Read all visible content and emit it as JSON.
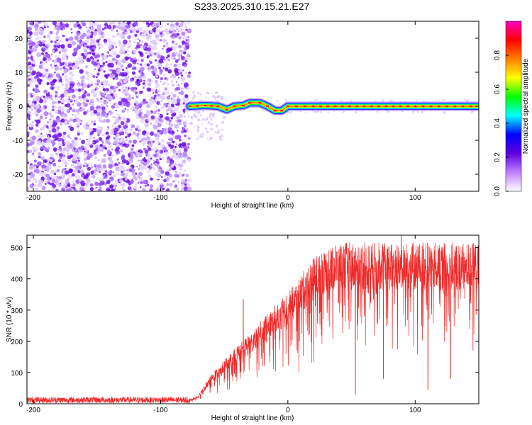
{
  "title": "S233.2025.310.15.21.E27",
  "chart_data": [
    {
      "type": "heatmap",
      "xlabel": "Height of straight line (km)",
      "ylabel": "Frequency (Hz)",
      "xlim": [
        -205,
        150
      ],
      "ylim": [
        -25,
        25
      ],
      "xticks": [
        -200,
        -100,
        0,
        100
      ],
      "yticks": [
        -20,
        -10,
        0,
        10,
        20
      ],
      "xtick_labels": [
        "-200",
        "-100",
        "0",
        "100"
      ],
      "ytick_labels": [
        "-20",
        "-10",
        "0",
        "10",
        "20"
      ],
      "noise_region_x": [
        -205,
        -77
      ],
      "signal_onset_x": -77,
      "ridge_points": [
        {
          "x": -77,
          "y": 0.0
        },
        {
          "x": -65,
          "y": 0.2
        },
        {
          "x": -55,
          "y": 0.0
        },
        {
          "x": -48,
          "y": -1.0
        },
        {
          "x": -42,
          "y": 0.0
        },
        {
          "x": -35,
          "y": 0.2
        },
        {
          "x": -30,
          "y": 1.0
        },
        {
          "x": -22,
          "y": 1.0
        },
        {
          "x": -16,
          "y": 0.0
        },
        {
          "x": -10,
          "y": -1.3
        },
        {
          "x": -5,
          "y": -1.3
        },
        {
          "x": 0,
          "y": 0.0
        },
        {
          "x": 20,
          "y": 0.0
        },
        {
          "x": 60,
          "y": 0.0
        },
        {
          "x": 100,
          "y": 0.0
        },
        {
          "x": 150,
          "y": 0.0
        }
      ],
      "colorbar": {
        "label": "Normalized spectral amplitude",
        "range": [
          0.0,
          1.0
        ],
        "ticks": [
          0.0,
          0.2,
          0.4,
          0.6,
          0.8
        ],
        "tick_labels": [
          "0.0",
          "0.2",
          "0.4",
          "0.6",
          "0.8"
        ],
        "colors": [
          "#ffffff",
          "#c080ff",
          "#6000e0",
          "#0000ff",
          "#00ffff",
          "#00ff00",
          "#ffff00",
          "#ff8000",
          "#ff0000",
          "#ff00c0"
        ]
      }
    },
    {
      "type": "line",
      "xlabel": "Height of straight line (km)",
      "ylabel": "SNR (10 * v/v)",
      "xlim": [
        -205,
        150
      ],
      "ylim": [
        0,
        540
      ],
      "xticks": [
        -200,
        -100,
        0,
        100
      ],
      "yticks": [
        0,
        100,
        200,
        300,
        400,
        500
      ],
      "xtick_labels": [
        "-200",
        "-100",
        "0",
        "100"
      ],
      "ytick_labels": [
        "0",
        "100",
        "200",
        "300",
        "400",
        "500"
      ],
      "color": "#ee2a2a",
      "trend": [
        {
          "x": -205,
          "y": 12
        },
        {
          "x": -77,
          "y": 12
        },
        {
          "x": -70,
          "y": 25
        },
        {
          "x": -60,
          "y": 80
        },
        {
          "x": -50,
          "y": 120
        },
        {
          "x": -40,
          "y": 160
        },
        {
          "x": -30,
          "y": 190
        },
        {
          "x": -20,
          "y": 230
        },
        {
          "x": -10,
          "y": 270
        },
        {
          "x": 0,
          "y": 305
        },
        {
          "x": 10,
          "y": 350
        },
        {
          "x": 20,
          "y": 400
        },
        {
          "x": 30,
          "y": 430
        },
        {
          "x": 40,
          "y": 440
        },
        {
          "x": 60,
          "y": 440
        },
        {
          "x": 90,
          "y": 440
        },
        {
          "x": 120,
          "y": 440
        },
        {
          "x": 150,
          "y": 440
        }
      ],
      "notable_spikes": [
        {
          "x": -35,
          "y": 335
        },
        {
          "x": 53,
          "y": 30
        },
        {
          "x": 75,
          "y": 80
        },
        {
          "x": 89,
          "y": 540
        },
        {
          "x": 110,
          "y": 45
        },
        {
          "x": 128,
          "y": 80
        }
      ]
    }
  ]
}
